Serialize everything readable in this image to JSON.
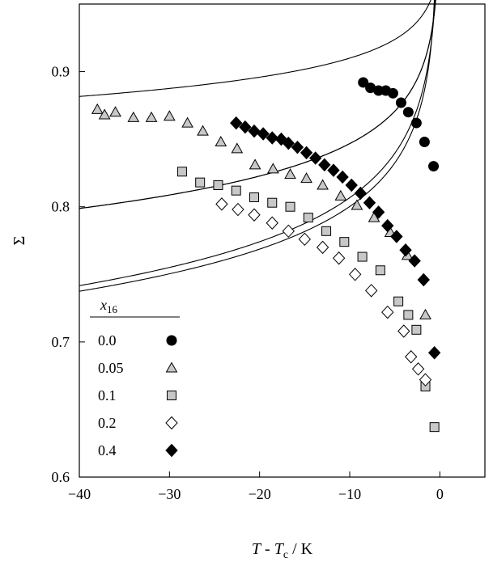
{
  "chart_data": {
    "type": "scatter",
    "title": "",
    "xlabel": {
      "main": "T",
      "dash": " - ",
      "var2": "T",
      "sub": "c",
      "unit": " / K"
    },
    "ylabel": "Σ",
    "xlim": [
      -40,
      5
    ],
    "ylim": [
      0.6,
      0.95
    ],
    "x_ticks": [
      -40,
      -30,
      -20,
      -10,
      0
    ],
    "x_tick_labels": [
      "−40",
      "−30",
      "−20",
      "−10",
      "0"
    ],
    "y_ticks": [
      0.6,
      0.7,
      0.8,
      0.9
    ],
    "y_tick_labels": [
      "0.6",
      "0.7",
      "0.8",
      "0.9"
    ],
    "grid": false,
    "legend": {
      "placement": "bottom-left",
      "title_main": "x",
      "title_sub": "16"
    },
    "series": [
      {
        "name": "0.0",
        "marker": "circle",
        "fill": "#000000",
        "points": [
          [
            -8.5,
            0.892
          ],
          [
            -7.7,
            0.888
          ],
          [
            -6.8,
            0.886
          ],
          [
            -6.0,
            0.886
          ],
          [
            -5.2,
            0.884
          ],
          [
            -4.3,
            0.877
          ],
          [
            -3.5,
            0.87
          ],
          [
            -2.6,
            0.862
          ],
          [
            -1.7,
            0.848
          ],
          [
            -0.7,
            0.83
          ]
        ],
        "fit": {
          "A": 0.9585,
          "B": 0.0208,
          "tc": 0.3
        }
      },
      {
        "name": "0.05",
        "marker": "triangle",
        "fill": "#c8c8c8",
        "points": [
          [
            -38.0,
            0.872
          ],
          [
            -37.2,
            0.868
          ],
          [
            -36.0,
            0.87
          ],
          [
            -34.0,
            0.866
          ],
          [
            -32.0,
            0.866
          ],
          [
            -30.0,
            0.867
          ],
          [
            -28.0,
            0.862
          ],
          [
            -26.3,
            0.856
          ],
          [
            -24.3,
            0.848
          ],
          [
            -22.5,
            0.843
          ],
          [
            -20.5,
            0.831
          ],
          [
            -18.5,
            0.828
          ],
          [
            -16.6,
            0.824
          ],
          [
            -14.8,
            0.821
          ],
          [
            -13.0,
            0.816
          ],
          [
            -11.0,
            0.808
          ],
          [
            -9.2,
            0.801
          ],
          [
            -7.3,
            0.792
          ],
          [
            -5.5,
            0.781
          ],
          [
            -3.6,
            0.764
          ],
          [
            -1.6,
            0.72
          ]
        ],
        "fit": {
          "A": 0.9264,
          "B": 0.0346,
          "tc": 0.0
        }
      },
      {
        "name": "0.1",
        "marker": "square",
        "fill": "#c8c8c8",
        "points": [
          [
            -28.6,
            0.826
          ],
          [
            -26.6,
            0.818
          ],
          [
            -24.6,
            0.816
          ],
          [
            -22.6,
            0.812
          ],
          [
            -20.6,
            0.807
          ],
          [
            -18.6,
            0.803
          ],
          [
            -16.6,
            0.8
          ],
          [
            -14.6,
            0.792
          ],
          [
            -12.6,
            0.782
          ],
          [
            -10.6,
            0.774
          ],
          [
            -8.6,
            0.763
          ],
          [
            -6.6,
            0.753
          ],
          [
            -4.6,
            0.73
          ],
          [
            -3.5,
            0.72
          ],
          [
            -2.6,
            0.709
          ],
          [
            -1.6,
            0.667
          ],
          [
            -0.6,
            0.637
          ]
        ],
        "fit": {
          "A": 0.9138,
          "B": 0.0467,
          "tc": -0.1
        }
      },
      {
        "name": "0.2",
        "marker": "diamond",
        "fill": "#ffffff",
        "points": [
          [
            -24.2,
            0.802
          ],
          [
            -22.4,
            0.798
          ],
          [
            -20.6,
            0.794
          ],
          [
            -18.6,
            0.788
          ],
          [
            -16.8,
            0.782
          ],
          [
            -15.0,
            0.776
          ],
          [
            -13.0,
            0.77
          ],
          [
            -11.2,
            0.762
          ],
          [
            -9.4,
            0.75
          ],
          [
            -7.6,
            0.738
          ],
          [
            -5.8,
            0.722
          ],
          [
            -4.0,
            0.708
          ],
          [
            -3.2,
            0.689
          ],
          [
            -2.4,
            0.68
          ],
          [
            -1.6,
            0.672
          ]
        ],
        "fit": {
          "A": 0.9013,
          "B": 0.0445,
          "tc": -0.3
        }
      },
      {
        "name": "0.4",
        "marker": "diamond",
        "fill": "#000000",
        "points": [
          [
            -22.6,
            0.862
          ],
          [
            -21.6,
            0.859
          ],
          [
            -20.6,
            0.856
          ],
          [
            -19.6,
            0.854
          ],
          [
            -18.6,
            0.851
          ],
          [
            -17.6,
            0.85
          ],
          [
            -16.8,
            0.847
          ],
          [
            -15.8,
            0.844
          ],
          [
            -14.8,
            0.84
          ],
          [
            -13.8,
            0.836
          ],
          [
            -12.8,
            0.831
          ],
          [
            -11.8,
            0.827
          ],
          [
            -10.8,
            0.822
          ],
          [
            -9.8,
            0.816
          ],
          [
            -8.8,
            0.81
          ],
          [
            -7.8,
            0.803
          ],
          [
            -6.8,
            0.796
          ],
          [
            -5.8,
            0.786
          ],
          [
            -4.8,
            0.778
          ],
          [
            -3.8,
            0.768
          ],
          [
            -2.8,
            0.76
          ],
          [
            -1.8,
            0.746
          ],
          [
            -0.6,
            0.692
          ]
        ],
        "fit": {
          "A": 0.9264,
          "B": 0.0346,
          "tc": 0.0
        }
      }
    ]
  }
}
